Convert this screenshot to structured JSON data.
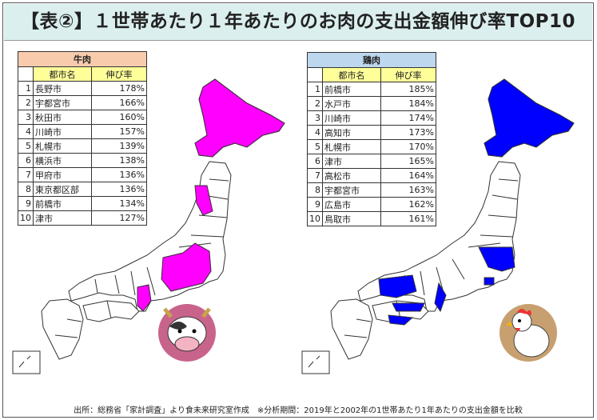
{
  "title": "【表②】１世帯あたり１年あたりのお肉の支出金額伸び率TOP10",
  "beef": {
    "header": "牛肉",
    "col_city": "都市名",
    "col_rate": "伸び率",
    "highlight_color": "#ff00ff",
    "rows": [
      [
        "1",
        "長野市",
        "178%"
      ],
      [
        "2",
        "宇都宮市",
        "166%"
      ],
      [
        "3",
        "秋田市",
        "160%"
      ],
      [
        "4",
        "川崎市",
        "157%"
      ],
      [
        "5",
        "札幌市",
        "139%"
      ],
      [
        "6",
        "横浜市",
        "138%"
      ],
      [
        "7",
        "甲府市",
        "136%"
      ],
      [
        "8",
        "東京都区部",
        "136%"
      ],
      [
        "9",
        "前橋市",
        "134%"
      ],
      [
        "10",
        "津市",
        "127%"
      ]
    ]
  },
  "chicken": {
    "header": "鶏肉",
    "col_city": "都市名",
    "col_rate": "伸び率",
    "highlight_color": "#0000ff",
    "rows": [
      [
        "1",
        "前橋市",
        "185%"
      ],
      [
        "2",
        "水戸市",
        "184%"
      ],
      [
        "3",
        "川崎市",
        "174%"
      ],
      [
        "4",
        "高知市",
        "173%"
      ],
      [
        "5",
        "札幌市",
        "170%"
      ],
      [
        "6",
        "津市",
        "165%"
      ],
      [
        "7",
        "高松市",
        "164%"
      ],
      [
        "8",
        "宇都宮市",
        "163%"
      ],
      [
        "9",
        "広島市",
        "162%"
      ],
      [
        "10",
        "鳥取市",
        "161%"
      ]
    ]
  },
  "icons": [
    "cow-icon",
    "chicken-icon"
  ],
  "footer": "出所：総務省「家計調査」より食未来研究室作成　※分析期間：2019年と2002年の1世帯あたり1年あたりの支出金額を比較"
}
